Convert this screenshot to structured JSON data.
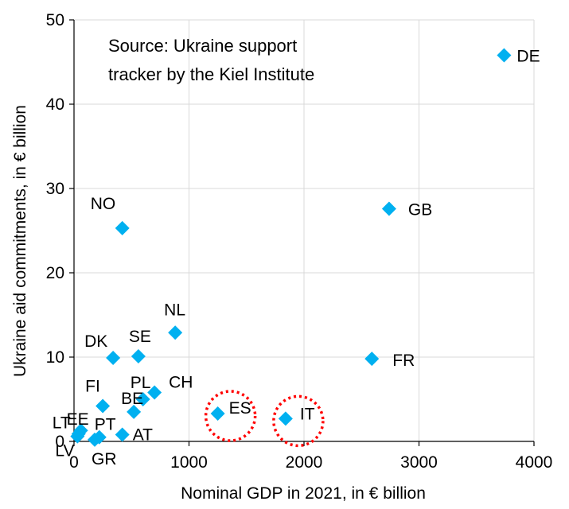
{
  "chart_data": {
    "type": "scatter",
    "annotation_lines": [
      "Source: Ukraine support",
      "tracker by the Kiel Institute"
    ],
    "xlabel": "Nominal GDP in 2021, in € billion",
    "ylabel": "Ukraine aid commitments, in € billion",
    "xlim": [
      0,
      4000
    ],
    "ylim": [
      0,
      50
    ],
    "xticks": [
      0,
      1000,
      2000,
      3000,
      4000
    ],
    "yticks": [
      0,
      10,
      20,
      30,
      40,
      50
    ],
    "grid": "horizontal and vertical",
    "marker_color": "#00b0f0",
    "highlight_color": "#ff0000",
    "highlighted": [
      "ES",
      "IT"
    ],
    "points": [
      {
        "label": "DE",
        "x": 3740,
        "y": 45.8
      },
      {
        "label": "GB",
        "x": 2740,
        "y": 27.6
      },
      {
        "label": "NO",
        "x": 420,
        "y": 25.3
      },
      {
        "label": "NL",
        "x": 880,
        "y": 12.9
      },
      {
        "label": "FR",
        "x": 2590,
        "y": 9.8
      },
      {
        "label": "DK",
        "x": 340,
        "y": 9.9
      },
      {
        "label": "SE",
        "x": 560,
        "y": 10.1
      },
      {
        "label": "CH",
        "x": 700,
        "y": 5.8
      },
      {
        "label": "PL",
        "x": 600,
        "y": 5.0
      },
      {
        "label": "FI",
        "x": 250,
        "y": 4.2
      },
      {
        "label": "BE",
        "x": 520,
        "y": 3.5
      },
      {
        "label": "ES",
        "x": 1250,
        "y": 3.3
      },
      {
        "label": "IT",
        "x": 1840,
        "y": 2.7
      },
      {
        "label": "EE",
        "x": 60,
        "y": 1.3
      },
      {
        "label": "LT",
        "x": 40,
        "y": 0.9
      },
      {
        "label": "LV",
        "x": 30,
        "y": 0.6
      },
      {
        "label": "PT",
        "x": 220,
        "y": 0.5
      },
      {
        "label": "GR",
        "x": 180,
        "y": 0.2
      },
      {
        "label": "AT",
        "x": 420,
        "y": 0.8
      }
    ]
  }
}
